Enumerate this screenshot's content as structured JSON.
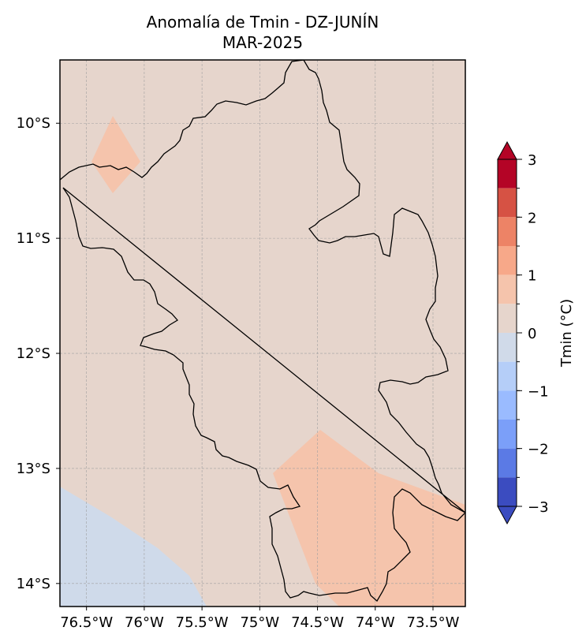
{
  "title": "Anomalía de Tmin - DZ-JUNÍN",
  "subtitle": "MAR-2025",
  "colors": {
    "background_field": "#e6d5cc",
    "warm_anomaly": "#f5c4ac",
    "cool_anomaly": "#cfdaea",
    "grid": "#a0a0a0",
    "border": "#000000"
  },
  "map": {
    "lon_range": [
      -76.73,
      -73.22
    ],
    "lat_range": [
      -14.2,
      -9.45
    ],
    "lon_ticks": [
      {
        "value": -76.5,
        "label": "76.5°W"
      },
      {
        "value": -76.0,
        "label": "76°W"
      },
      {
        "value": -75.5,
        "label": "75.5°W"
      },
      {
        "value": -75.0,
        "label": "75°W"
      },
      {
        "value": -74.5,
        "label": "74.5°W"
      },
      {
        "value": -74.0,
        "label": "74°W"
      },
      {
        "value": -73.5,
        "label": "73.5°W"
      }
    ],
    "lat_ticks": [
      {
        "value": -10,
        "label": "10°S"
      },
      {
        "value": -11,
        "label": "11°S"
      },
      {
        "value": -12,
        "label": "12°S"
      },
      {
        "value": -13,
        "label": "13°S"
      },
      {
        "value": -14,
        "label": "14°S"
      }
    ],
    "grid": true
  },
  "colorbar": {
    "label": "Tmin (°C)",
    "tick_labels": [
      {
        "value": 3,
        "label": "3"
      },
      {
        "value": 2,
        "label": "2"
      },
      {
        "value": 1,
        "label": "1"
      },
      {
        "value": 0,
        "label": "0"
      },
      {
        "value": -1,
        "label": "−1"
      },
      {
        "value": -2,
        "label": "−2"
      },
      {
        "value": -3,
        "label": "−3"
      }
    ],
    "range": [
      -3,
      3
    ],
    "extend": "both",
    "bands": [
      {
        "from": 2.5,
        "to": 3.0,
        "color": "#b40426"
      },
      {
        "from": 2.0,
        "to": 2.5,
        "color": "#d65244"
      },
      {
        "from": 1.5,
        "to": 2.0,
        "color": "#ed8366"
      },
      {
        "from": 1.0,
        "to": 1.5,
        "color": "#f7a889"
      },
      {
        "from": 0.5,
        "to": 1.0,
        "color": "#f5c4ac"
      },
      {
        "from": 0.0,
        "to": 0.5,
        "color": "#e6d5cc"
      },
      {
        "from": -0.5,
        "to": 0.0,
        "color": "#d0dae9"
      },
      {
        "from": -1.0,
        "to": -0.5,
        "color": "#b5cef8"
      },
      {
        "from": -1.5,
        "to": -1.0,
        "color": "#9abbff"
      },
      {
        "from": -2.0,
        "to": -1.5,
        "color": "#7b9ff9"
      },
      {
        "from": -2.5,
        "to": -2.0,
        "color": "#5b7ae5"
      },
      {
        "from": -3.0,
        "to": -2.5,
        "color": "#3b4cc0"
      }
    ],
    "extend_top_color": "#b40426",
    "extend_bottom_color": "#3b4cc0"
  }
}
